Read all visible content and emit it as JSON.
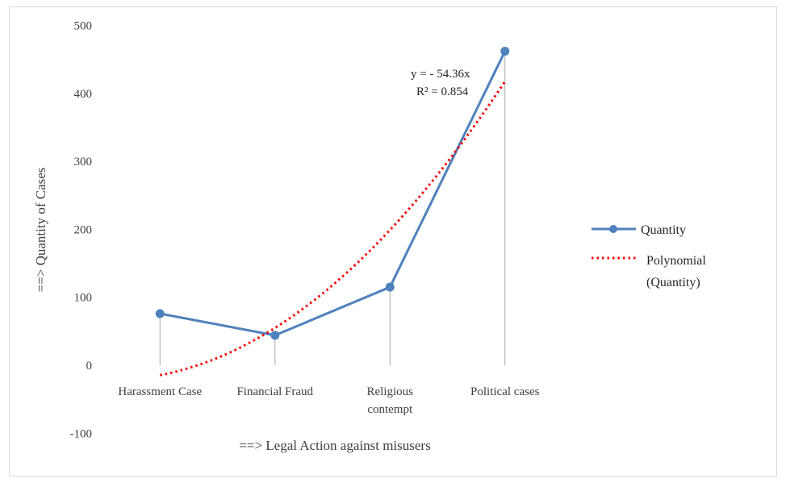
{
  "chart_data": {
    "type": "line",
    "categories": [
      "Harassment Case",
      "Financial Fraud",
      "Religious contempt",
      "Political cases"
    ],
    "category_lines": [
      [
        "Harassment Case"
      ],
      [
        "Financial Fraud"
      ],
      [
        "Religious",
        "contempt"
      ],
      [
        "Political cases"
      ]
    ],
    "series": [
      {
        "name": "Quantity",
        "values": [
          76,
          44,
          115,
          462
        ],
        "color": "#4f81bd",
        "marker": "circle"
      }
    ],
    "trendline": {
      "type": "polynomial",
      "legend_lines": [
        "Polynomial",
        "(Quantity)"
      ],
      "color": "#ff0000",
      "style": "dotted",
      "values": [
        -14,
        53,
        201,
        417
      ],
      "equation_text": "y =  - 54.36x",
      "r2_text": "R² = 0.854"
    },
    "xlabel": "==> Legal  Action against misusers",
    "ylabel": "==> Quantity of Cases",
    "ylim": [
      -100,
      500
    ],
    "yticks": [
      -100,
      0,
      100,
      200,
      300,
      400,
      500
    ],
    "grid": false,
    "drop_lines": true,
    "legend_position": "right"
  }
}
